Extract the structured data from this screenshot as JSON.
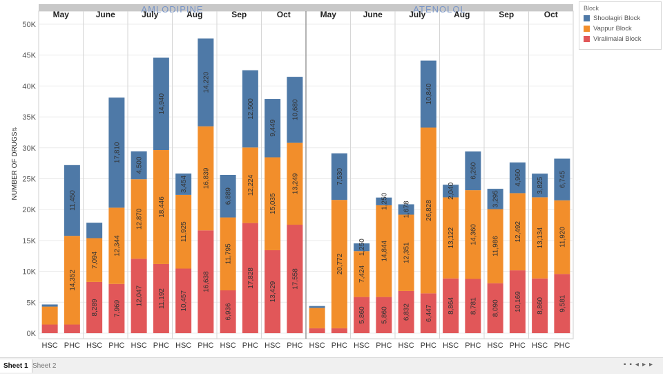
{
  "chart_data": {
    "type": "bar",
    "stacked": true,
    "ylabel": "NUMBER OF DRUGS",
    "ylim": [
      0,
      50000
    ],
    "yticks": [
      0,
      5000,
      10000,
      15000,
      20000,
      25000,
      30000,
      35000,
      40000,
      45000,
      50000
    ],
    "ytick_labels": [
      "0K",
      "5K",
      "10K",
      "15K",
      "20K",
      "25K",
      "30K",
      "35K",
      "40K",
      "45K",
      "50K"
    ],
    "drugs": [
      "AMLODIPINE",
      "ATENOLOL"
    ],
    "months": [
      "May",
      "June",
      "July",
      "Aug",
      "Sep",
      "Oct"
    ],
    "facility_types": [
      "HSC",
      "PHC"
    ],
    "series_names": [
      "Shoolagiri Block",
      "Vappur Block",
      "Viralimalai Block"
    ],
    "colors": {
      "Shoolagiri Block": "#4e79a7",
      "Vappur Block": "#f28e2b",
      "Viralimalai Block": "#e15759"
    },
    "bars": [
      {
        "drug": "AMLODIPINE",
        "month": "May",
        "facility": "HSC",
        "Viralimalai Block": 1400,
        "Vappur Block": 2900,
        "Shoolagiri Block": 350,
        "labels": [
          "",
          "",
          ""
        ]
      },
      {
        "drug": "AMLODIPINE",
        "month": "May",
        "facility": "PHC",
        "Viralimalai Block": 1400,
        "Vappur Block": 14352,
        "Shoolagiri Block": 11450,
        "labels": [
          "",
          "14,352",
          "11,450"
        ]
      },
      {
        "drug": "AMLODIPINE",
        "month": "June",
        "facility": "HSC",
        "Viralimalai Block": 8289,
        "Vappur Block": 7094,
        "Shoolagiri Block": 2500,
        "labels": [
          "8,289",
          "7,094",
          ""
        ]
      },
      {
        "drug": "AMLODIPINE",
        "month": "June",
        "facility": "PHC",
        "Viralimalai Block": 7969,
        "Vappur Block": 12344,
        "Shoolagiri Block": 17810,
        "labels": [
          "7,969",
          "12,344",
          "17,810"
        ]
      },
      {
        "drug": "AMLODIPINE",
        "month": "July",
        "facility": "HSC",
        "Viralimalai Block": 12047,
        "Vappur Block": 12870,
        "Shoolagiri Block": 4500,
        "labels": [
          "12,047",
          "12,870",
          "4,500"
        ]
      },
      {
        "drug": "AMLODIPINE",
        "month": "July",
        "facility": "PHC",
        "Viralimalai Block": 11192,
        "Vappur Block": 18446,
        "Shoolagiri Block": 14940,
        "labels": [
          "11,192",
          "18,446",
          "14,940"
        ]
      },
      {
        "drug": "AMLODIPINE",
        "month": "Aug",
        "facility": "HSC",
        "Viralimalai Block": 10457,
        "Vappur Block": 11925,
        "Shoolagiri Block": 3454,
        "labels": [
          "10,457",
          "11,925",
          "3,454"
        ]
      },
      {
        "drug": "AMLODIPINE",
        "month": "Aug",
        "facility": "PHC",
        "Viralimalai Block": 16638,
        "Vappur Block": 16839,
        "Shoolagiri Block": 14220,
        "labels": [
          "16,638",
          "16,839",
          "14,220"
        ]
      },
      {
        "drug": "AMLODIPINE",
        "month": "Sep",
        "facility": "HSC",
        "Viralimalai Block": 6936,
        "Vappur Block": 11795,
        "Shoolagiri Block": 6889,
        "labels": [
          "6,936",
          "11,795",
          "6,889"
        ]
      },
      {
        "drug": "AMLODIPINE",
        "month": "Sep",
        "facility": "PHC",
        "Viralimalai Block": 17828,
        "Vappur Block": 12224,
        "Shoolagiri Block": 12500,
        "labels": [
          "17,828",
          "12,224",
          "12,500"
        ]
      },
      {
        "drug": "AMLODIPINE",
        "month": "Oct",
        "facility": "HSC",
        "Viralimalai Block": 13429,
        "Vappur Block": 15035,
        "Shoolagiri Block": 9449,
        "labels": [
          "13,429",
          "15,035",
          "9,449"
        ]
      },
      {
        "drug": "AMLODIPINE",
        "month": "Oct",
        "facility": "PHC",
        "Viralimalai Block": 17558,
        "Vappur Block": 13249,
        "Shoolagiri Block": 10680,
        "labels": [
          "17,558",
          "13,249",
          "10,680"
        ]
      },
      {
        "drug": "ATENOLOL",
        "month": "May",
        "facility": "HSC",
        "Viralimalai Block": 800,
        "Vappur Block": 3300,
        "Shoolagiri Block": 300,
        "labels": [
          "",
          "",
          ""
        ]
      },
      {
        "drug": "ATENOLOL",
        "month": "May",
        "facility": "PHC",
        "Viralimalai Block": 800,
        "Vappur Block": 20772,
        "Shoolagiri Block": 7530,
        "labels": [
          "",
          "20,772",
          "7,530"
        ]
      },
      {
        "drug": "ATENOLOL",
        "month": "June",
        "facility": "HSC",
        "Viralimalai Block": 5860,
        "Vappur Block": 7424,
        "Shoolagiri Block": 1250,
        "labels": [
          "5,860",
          "7,424",
          "1,250"
        ]
      },
      {
        "drug": "ATENOLOL",
        "month": "June",
        "facility": "PHC",
        "Viralimalai Block": 5860,
        "Vappur Block": 14844,
        "Shoolagiri Block": 1250,
        "labels": [
          "5,860",
          "14,844",
          "1,250"
        ]
      },
      {
        "drug": "ATENOLOL",
        "month": "July",
        "facility": "HSC",
        "Viralimalai Block": 6832,
        "Vappur Block": 12351,
        "Shoolagiri Block": 1678,
        "labels": [
          "6,832",
          "12,351",
          "1,678"
        ]
      },
      {
        "drug": "ATENOLOL",
        "month": "July",
        "facility": "PHC",
        "Viralimalai Block": 6447,
        "Vappur Block": 26828,
        "Shoolagiri Block": 10840,
        "labels": [
          "6,447",
          "26,828",
          "10,840"
        ]
      },
      {
        "drug": "ATENOLOL",
        "month": "Aug",
        "facility": "HSC",
        "Viralimalai Block": 8864,
        "Vappur Block": 13122,
        "Shoolagiri Block": 2040,
        "labels": [
          "8,864",
          "13,122",
          "2,040"
        ]
      },
      {
        "drug": "ATENOLOL",
        "month": "Aug",
        "facility": "PHC",
        "Viralimalai Block": 8781,
        "Vappur Block": 14360,
        "Shoolagiri Block": 6260,
        "labels": [
          "8,781",
          "14,360",
          "6,260"
        ]
      },
      {
        "drug": "ATENOLOL",
        "month": "Sep",
        "facility": "HSC",
        "Viralimalai Block": 8090,
        "Vappur Block": 11986,
        "Shoolagiri Block": 3295,
        "labels": [
          "8,090",
          "11,986",
          "3,295"
        ]
      },
      {
        "drug": "ATENOLOL",
        "month": "Sep",
        "facility": "PHC",
        "Viralimalai Block": 10169,
        "Vappur Block": 12492,
        "Shoolagiri Block": 4960,
        "labels": [
          "10,169",
          "12,492",
          "4,960"
        ]
      },
      {
        "drug": "ATENOLOL",
        "month": "Oct",
        "facility": "HSC",
        "Viralimalai Block": 8860,
        "Vappur Block": 13134,
        "Shoolagiri Block": 3825,
        "labels": [
          "8,860",
          "13,134",
          "3,825"
        ]
      },
      {
        "drug": "ATENOLOL",
        "month": "Oct",
        "facility": "PHC",
        "Viralimalai Block": 9581,
        "Vappur Block": 11920,
        "Shoolagiri Block": 6745,
        "labels": [
          "9,581",
          "11,920",
          "6,745"
        ]
      }
    ]
  },
  "legend": {
    "title": "Block",
    "items": [
      {
        "label": "Shoolagiri Block",
        "color": "#4e79a7"
      },
      {
        "label": "Vappur Block",
        "color": "#f28e2b"
      },
      {
        "label": "Viralimalai Block",
        "color": "#e15759"
      }
    ]
  },
  "tabs": {
    "sheet1": "Sheet 1",
    "sheet2": "Sheet 2"
  }
}
